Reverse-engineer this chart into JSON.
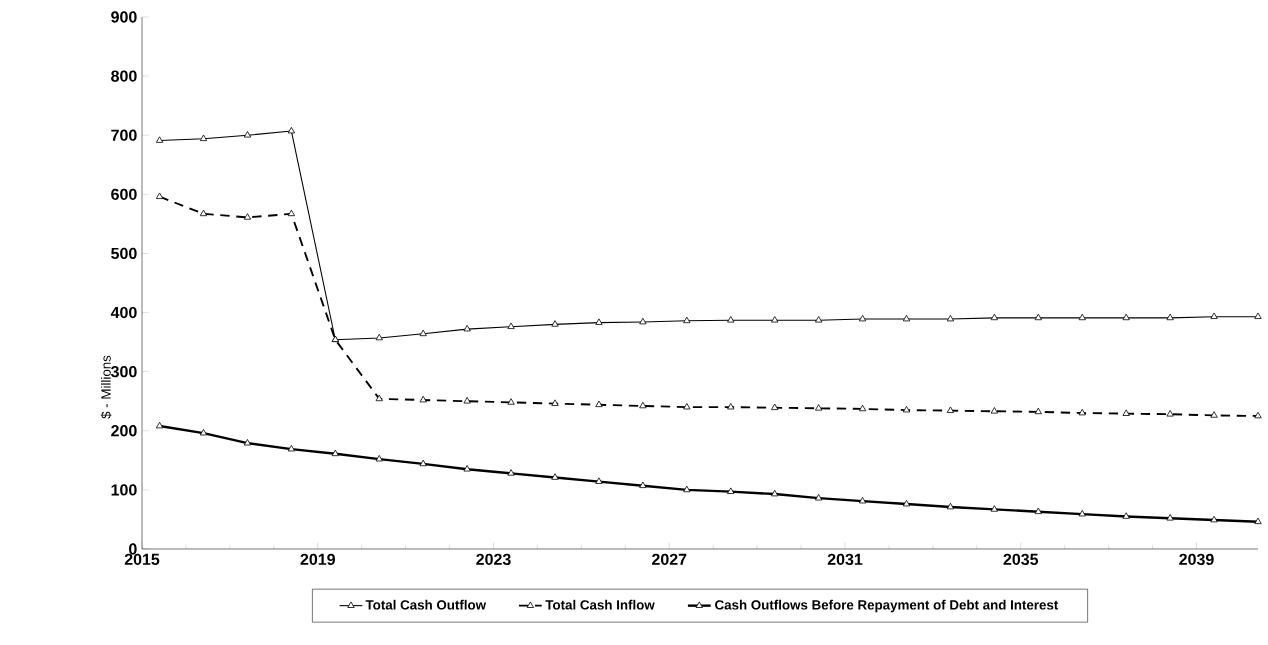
{
  "chart_data": {
    "type": "line",
    "ylabel": "$ - Millions",
    "x": [
      2015.4,
      2016.4,
      2017.4,
      2018.4,
      2019.4,
      2020.4,
      2021.4,
      2022.4,
      2023.4,
      2024.4,
      2025.4,
      2026.4,
      2027.4,
      2028.4,
      2029.4,
      2030.4,
      2031.4,
      2032.4,
      2033.4,
      2034.4,
      2035.4,
      2036.4,
      2037.4,
      2038.4,
      2039.4,
      2040.4
    ],
    "series": [
      {
        "name": "Total Cash Outflow",
        "color": "#000000",
        "line_style": "solid",
        "values": [
          691,
          694,
          700,
          707,
          354,
          357,
          364,
          372,
          376,
          380,
          383,
          384,
          386,
          387,
          387,
          387,
          389,
          389,
          389,
          391,
          391,
          391,
          391,
          391,
          393,
          393
        ]
      },
      {
        "name": "Total Cash Inflow",
        "color": "#000000",
        "line_style": "dashed",
        "values": [
          596,
          567,
          561,
          567,
          354,
          254,
          252,
          250,
          248,
          246,
          244,
          242,
          240,
          240,
          239,
          238,
          237,
          235,
          234,
          233,
          232,
          230,
          229,
          228,
          226,
          225
        ]
      },
      {
        "name": "Cash Outflows Before Repayment of Debt and Interest",
        "color": "#000000",
        "line_style": "solid",
        "values": [
          208,
          196,
          179,
          169,
          161,
          152,
          144,
          135,
          128,
          121,
          114,
          107,
          100,
          97,
          93,
          86,
          81,
          76,
          71,
          67,
          63,
          59,
          55,
          52,
          49,
          46
        ]
      }
    ],
    "xlim": [
      2015,
      2040.4
    ],
    "ylim": [
      0,
      900
    ],
    "xticks": [
      2015,
      2019,
      2023,
      2027,
      2031,
      2035,
      2039
    ],
    "yticks": [
      0,
      100,
      200,
      300,
      400,
      500,
      600,
      700,
      800,
      900
    ],
    "grid": false,
    "legend": "bottom",
    "marker": "triangle"
  }
}
